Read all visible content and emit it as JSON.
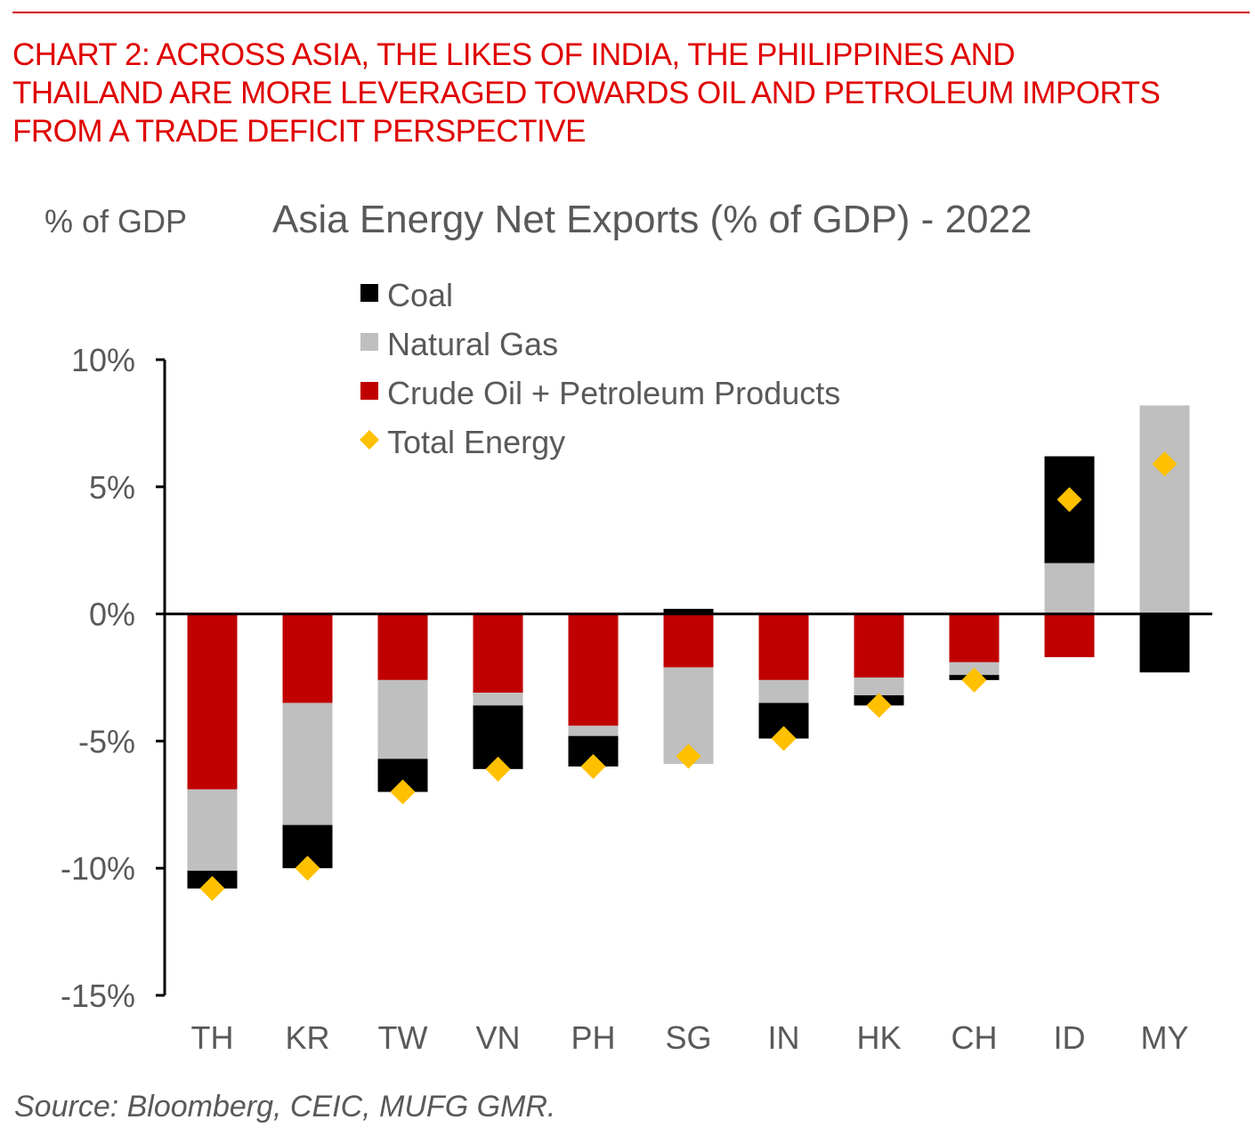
{
  "header": {
    "headline": "CHART 2: ACROSS ASIA, THE LIKES OF INDIA, THE PHILIPPINES AND THAILAND ARE MORE LEVERAGED TOWARDS OIL AND PETROLEUM IMPORTS FROM A TRADE DEFICIT PERSPECTIVE"
  },
  "colors": {
    "headline": "#e00000",
    "coal": "#000000",
    "natural_gas": "#bfbfbf",
    "crude_oil": "#c00000",
    "total_energy": "#ffc000",
    "text": "#595959"
  },
  "footer": {
    "source": "Source: Bloomberg, CEIC, MUFG GMR."
  },
  "chart_data": {
    "type": "bar",
    "stacked": true,
    "title": "Asia Energy Net Exports (% of GDP) - 2022",
    "ylabel": "% of GDP",
    "xlabel": "",
    "ylim": [
      -15,
      10
    ],
    "yticks": [
      10,
      5,
      0,
      -5,
      -10,
      -15
    ],
    "ytick_labels": [
      "10%",
      "5%",
      "0%",
      "-5%",
      "-10%",
      "-15%"
    ],
    "grid": false,
    "legend_position": "top-center",
    "categories": [
      "TH",
      "KR",
      "TW",
      "VN",
      "PH",
      "SG",
      "IN",
      "HK",
      "CH",
      "ID",
      "MY"
    ],
    "series": [
      {
        "name": "Coal",
        "kind": "bar",
        "color": "#000000",
        "values": [
          -0.7,
          -1.7,
          -1.3,
          -2.5,
          -1.2,
          0.2,
          -1.4,
          -0.4,
          -0.2,
          4.2,
          -2.3
        ]
      },
      {
        "name": "Natural Gas",
        "kind": "bar",
        "color": "#bfbfbf",
        "values": [
          -3.2,
          -4.8,
          -3.1,
          -0.5,
          -0.4,
          -3.8,
          -0.9,
          -0.7,
          -0.5,
          2.0,
          8.2
        ]
      },
      {
        "name": "Crude Oil + Petroleum Products",
        "kind": "bar",
        "color": "#c00000",
        "values": [
          -6.9,
          -3.5,
          -2.6,
          -3.1,
          -4.4,
          -2.1,
          -2.6,
          -2.5,
          -1.9,
          -1.7,
          0.0
        ]
      },
      {
        "name": "Total Energy",
        "kind": "marker",
        "color": "#ffc000",
        "values": [
          -10.8,
          -10.0,
          -7.0,
          -6.1,
          -6.0,
          -5.6,
          -4.9,
          -3.6,
          -2.6,
          4.5,
          5.9
        ]
      }
    ]
  }
}
